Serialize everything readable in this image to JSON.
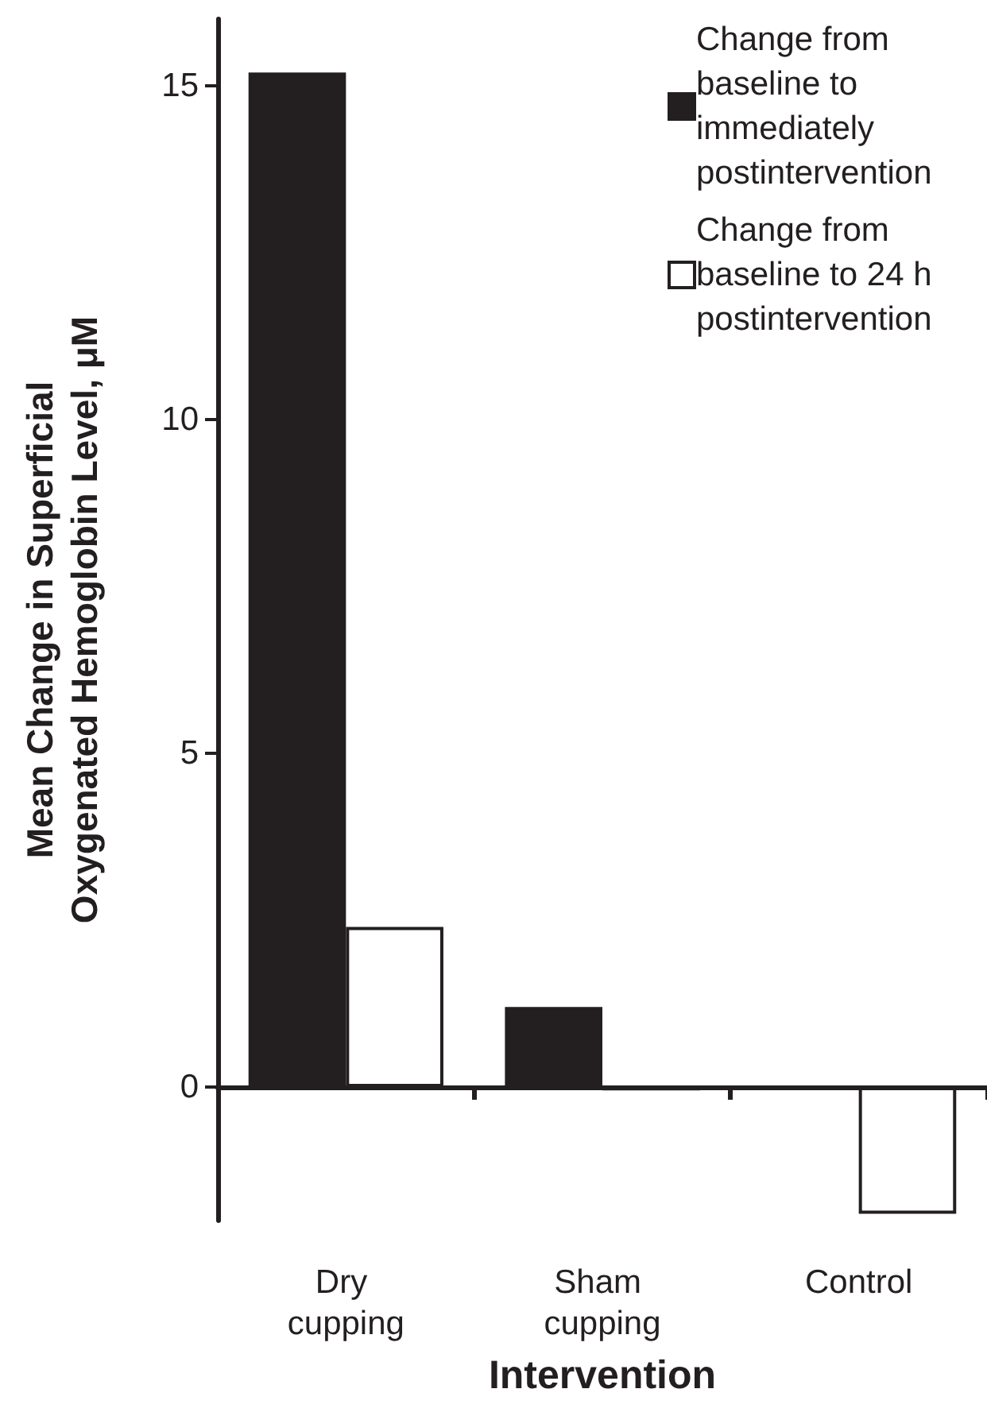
{
  "chart_data": {
    "type": "bar",
    "xlabel": "Intervention",
    "ylabel": "Mean Change in Superficial Oxygenated Hemoglobin Level, μM",
    "categories": [
      "Dry cupping",
      "Sham cupping",
      "Control"
    ],
    "series": [
      {
        "name": "Change from baseline to immediately postintervention",
        "color": "#231f20",
        "values": [
          15.2,
          1.2,
          0
        ]
      },
      {
        "name": "Change from baseline to 24 h postintervention",
        "color": "#ffffff",
        "values": [
          2.4,
          -0.05,
          -1.9
        ]
      }
    ],
    "ylim": [
      -2,
      16
    ],
    "yticks": [
      0,
      5,
      10,
      15
    ],
    "legend": "top right"
  }
}
